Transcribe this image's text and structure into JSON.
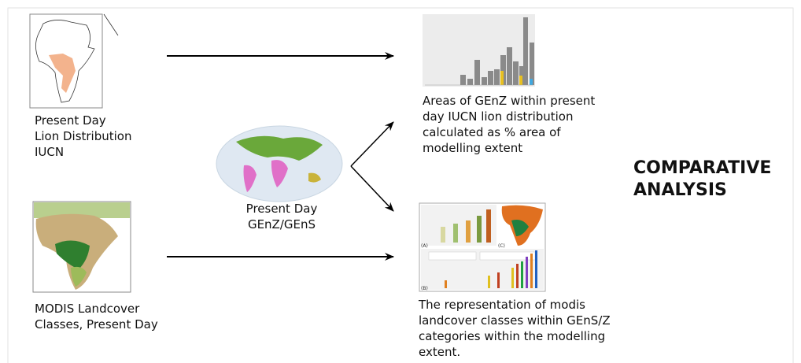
{
  "lion_distribution": {
    "lines": [
      "Present Day",
      "Lion Distribution",
      "IUCN"
    ]
  },
  "modis_landcover": {
    "lines": [
      "MODIS Landcover",
      "Classes, Present Day"
    ]
  },
  "genz_gens": {
    "lines": [
      "Present Day",
      "GEnZ/GEnS"
    ]
  },
  "areas_output": {
    "lines": [
      "Areas of GEnZ within  present",
      "day IUCN lion distribution",
      "calculated as % area of",
      "modelling extent"
    ]
  },
  "representation_output": {
    "lines": [
      "The representation of modis",
      "landcover classes within GEnS/Z",
      "categories within the modelling",
      "extent."
    ],
    "panels": [
      "(A)",
      "(B)",
      "(C)"
    ]
  },
  "comparative_analysis": {
    "lines": [
      "COMPARATIVE",
      "ANALYSIS"
    ]
  }
}
